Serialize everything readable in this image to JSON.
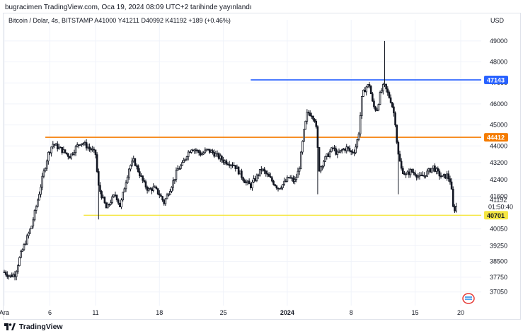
{
  "header": {
    "publisher_line": "bugracimen TradingView.com, Oca 19, 2024 08:09 UTC+2 tarihinde yayınlandı"
  },
  "legend": {
    "text": "Bitcoin / Dolar, 4s, BITSTAMP  A41000  Y41211  D40992  K41192  +189 (+0.46%)"
  },
  "currency": "USD",
  "footer": {
    "brand": "TradingView"
  },
  "colors": {
    "candle": "#131722",
    "blue_line": "#2962ff",
    "orange_line": "#f57c00",
    "yellow_line": "#f5e642",
    "current_tag": "#ffffff"
  },
  "chart_data": {
    "type": "candlestick",
    "symbol": "Bitcoin / Dolar",
    "interval": "4s",
    "exchange": "BITSTAMP",
    "ohlc_last": {
      "open": 41000,
      "high": 41211,
      "low": 40992,
      "close": 41192,
      "change": "+189 (+0.46%)"
    },
    "ylim": [
      36400,
      49600
    ],
    "y_ticks": [
      {
        "value": 49000,
        "label": "49000"
      },
      {
        "value": 48000,
        "label": "48000"
      },
      {
        "value": 47000,
        "label": "47000"
      },
      {
        "value": 46000,
        "label": "46000"
      },
      {
        "value": 45000,
        "label": "45000"
      },
      {
        "value": 44000,
        "label": "44000"
      },
      {
        "value": 43200,
        "label": "43200"
      },
      {
        "value": 42400,
        "label": "42400"
      },
      {
        "value": 41600,
        "label": "41600"
      },
      {
        "value": 40050,
        "label": "40050"
      },
      {
        "value": 39250,
        "label": "39250"
      },
      {
        "value": 38500,
        "label": "38500"
      },
      {
        "value": 37750,
        "label": "37750"
      },
      {
        "value": 37050,
        "label": "37050"
      }
    ],
    "x_ticks": [
      {
        "day": 0,
        "label": "Ara"
      },
      {
        "day": 5,
        "label": "6"
      },
      {
        "day": 10,
        "label": "11"
      },
      {
        "day": 17,
        "label": "18"
      },
      {
        "day": 24,
        "label": "25"
      },
      {
        "day": 31,
        "label": "2024",
        "bold": true
      },
      {
        "day": 38,
        "label": "8"
      },
      {
        "day": 45,
        "label": "15"
      },
      {
        "day": 50,
        "label": "20"
      }
    ],
    "horizontal_lines": [
      {
        "name": "blue",
        "value": 47143,
        "label": "47143",
        "start_day": 27,
        "color": "#2962ff"
      },
      {
        "name": "orange",
        "value": 44412,
        "label": "44412",
        "start_day": 4.5,
        "color": "#f57c00"
      },
      {
        "name": "yellow",
        "value": 40701,
        "label": "40701",
        "start_day": 8.7,
        "color": "#f5e642"
      }
    ],
    "current_price": {
      "value": 41192,
      "label": "41192",
      "countdown": "01:50:40"
    },
    "close_path": [
      {
        "day": 0.0,
        "close": 38000
      },
      {
        "day": 0.6,
        "close": 37800
      },
      {
        "day": 1.2,
        "close": 37900
      },
      {
        "day": 1.7,
        "close": 38700
      },
      {
        "day": 2.3,
        "close": 39400
      },
      {
        "day": 3.0,
        "close": 40200
      },
      {
        "day": 3.6,
        "close": 41300
      },
      {
        "day": 4.2,
        "close": 42500
      },
      {
        "day": 4.8,
        "close": 43600
      },
      {
        "day": 5.3,
        "close": 44100
      },
      {
        "day": 6.0,
        "close": 43900
      },
      {
        "day": 6.6,
        "close": 43700
      },
      {
        "day": 7.2,
        "close": 43500
      },
      {
        "day": 7.8,
        "close": 43900
      },
      {
        "day": 8.4,
        "close": 44200
      },
      {
        "day": 9.0,
        "close": 44000
      },
      {
        "day": 9.6,
        "close": 43800
      },
      {
        "day": 10.0,
        "close": 43600
      },
      {
        "day": 10.3,
        "close": 42100
      },
      {
        "day": 10.7,
        "close": 41600
      },
      {
        "day": 11.2,
        "close": 41000
      },
      {
        "day": 11.7,
        "close": 41400
      },
      {
        "day": 12.2,
        "close": 41700
      },
      {
        "day": 12.7,
        "close": 41100
      },
      {
        "day": 13.2,
        "close": 42100
      },
      {
        "day": 13.7,
        "close": 43000
      },
      {
        "day": 14.2,
        "close": 43300
      },
      {
        "day": 14.8,
        "close": 42700
      },
      {
        "day": 15.3,
        "close": 42200
      },
      {
        "day": 15.8,
        "close": 41900
      },
      {
        "day": 16.4,
        "close": 42000
      },
      {
        "day": 17.0,
        "close": 41700
      },
      {
        "day": 17.5,
        "close": 41300
      },
      {
        "day": 18.0,
        "close": 41800
      },
      {
        "day": 18.5,
        "close": 42300
      },
      {
        "day": 19.0,
        "close": 42900
      },
      {
        "day": 19.5,
        "close": 43100
      },
      {
        "day": 20.0,
        "close": 43600
      },
      {
        "day": 20.5,
        "close": 43900
      },
      {
        "day": 21.0,
        "close": 43800
      },
      {
        "day": 21.6,
        "close": 43600
      },
      {
        "day": 22.2,
        "close": 43800
      },
      {
        "day": 22.8,
        "close": 43700
      },
      {
        "day": 23.4,
        "close": 43500
      },
      {
        "day": 24.0,
        "close": 43300
      },
      {
        "day": 24.6,
        "close": 43200
      },
      {
        "day": 25.2,
        "close": 43100
      },
      {
        "day": 25.8,
        "close": 42700
      },
      {
        "day": 26.4,
        "close": 42300
      },
      {
        "day": 27.0,
        "close": 42100
      },
      {
        "day": 27.6,
        "close": 42500
      },
      {
        "day": 28.2,
        "close": 42900
      },
      {
        "day": 28.8,
        "close": 42600
      },
      {
        "day": 29.4,
        "close": 42300
      },
      {
        "day": 30.0,
        "close": 42000
      },
      {
        "day": 30.6,
        "close": 42200
      },
      {
        "day": 31.2,
        "close": 42500
      },
      {
        "day": 31.8,
        "close": 42300
      },
      {
        "day": 32.3,
        "close": 42900
      },
      {
        "day": 32.8,
        "close": 44600
      },
      {
        "day": 33.2,
        "close": 45600
      },
      {
        "day": 33.7,
        "close": 45500
      },
      {
        "day": 34.1,
        "close": 45200
      },
      {
        "day": 34.5,
        "close": 42900
      },
      {
        "day": 35.0,
        "close": 43300
      },
      {
        "day": 35.5,
        "close": 43600
      },
      {
        "day": 36.0,
        "close": 43900
      },
      {
        "day": 36.5,
        "close": 43600
      },
      {
        "day": 37.0,
        "close": 43800
      },
      {
        "day": 37.5,
        "close": 43900
      },
      {
        "day": 38.0,
        "close": 43700
      },
      {
        "day": 38.4,
        "close": 43800
      },
      {
        "day": 38.8,
        "close": 44500
      },
      {
        "day": 39.2,
        "close": 46400
      },
      {
        "day": 39.6,
        "close": 46800
      },
      {
        "day": 40.0,
        "close": 46900
      },
      {
        "day": 40.4,
        "close": 45900
      },
      {
        "day": 40.8,
        "close": 45700
      },
      {
        "day": 41.2,
        "close": 46500
      },
      {
        "day": 41.6,
        "close": 46900
      },
      {
        "day": 42.0,
        "close": 46500
      },
      {
        "day": 42.4,
        "close": 46100
      },
      {
        "day": 42.8,
        "close": 45300
      },
      {
        "day": 43.1,
        "close": 43700
      },
      {
        "day": 43.5,
        "close": 42900
      },
      {
        "day": 44.0,
        "close": 42600
      },
      {
        "day": 44.5,
        "close": 42800
      },
      {
        "day": 45.0,
        "close": 42700
      },
      {
        "day": 45.5,
        "close": 42500
      },
      {
        "day": 46.0,
        "close": 42600
      },
      {
        "day": 46.5,
        "close": 42800
      },
      {
        "day": 47.0,
        "close": 43000
      },
      {
        "day": 47.5,
        "close": 42700
      },
      {
        "day": 48.0,
        "close": 42500
      },
      {
        "day": 48.5,
        "close": 42600
      },
      {
        "day": 48.9,
        "close": 42300
      },
      {
        "day": 49.2,
        "close": 40900
      },
      {
        "day": 49.6,
        "close": 41192
      }
    ]
  }
}
